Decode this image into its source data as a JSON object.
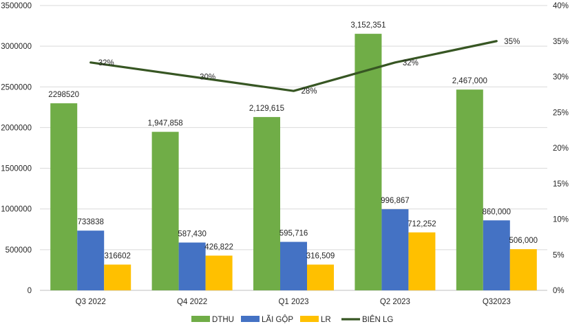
{
  "chart_data": {
    "type": "bar+line",
    "categories": [
      "Q3 2022",
      "Q4 2022",
      "Q1 2023",
      "Q2 2023",
      "Q32023"
    ],
    "series": [
      {
        "name": "DTHU",
        "type": "bar",
        "axis": "left",
        "color": "#70AD47",
        "values": [
          2298520,
          1947858,
          2129615,
          3152351,
          2467000
        ],
        "labels": [
          "2298520",
          "1,947,858",
          "2,129,615",
          "3,152,351",
          "2,467,000"
        ]
      },
      {
        "name": "LÃI GỘP",
        "type": "bar",
        "axis": "left",
        "color": "#4472C4",
        "values": [
          733838,
          587430,
          595716,
          996867,
          860000
        ],
        "labels": [
          "733838",
          "587,430",
          "595,716",
          "996,867",
          "860,000"
        ]
      },
      {
        "name": "LR",
        "type": "bar",
        "axis": "left",
        "color": "#FFC000",
        "values": [
          316602,
          426822,
          316509,
          712252,
          506000
        ],
        "labels": [
          "316602",
          "426,822",
          "316,509",
          "712,252",
          "506,000"
        ]
      },
      {
        "name": "BIÊN LG",
        "type": "line",
        "axis": "right",
        "color": "#375623",
        "values": [
          32,
          30,
          28,
          32,
          35
        ],
        "labels": [
          "32%",
          "30%",
          "28%",
          "32%",
          "35%"
        ]
      }
    ],
    "y_left": {
      "min": 0,
      "max": 3500000,
      "step": 500000,
      "ticks": [
        "0",
        "500000",
        "1000000",
        "1500000",
        "2000000",
        "2500000",
        "3000000",
        "3500000"
      ]
    },
    "y_right": {
      "min": 0,
      "max": 40,
      "step": 5,
      "ticks": [
        "0%",
        "5%",
        "10%",
        "15%",
        "20%",
        "25%",
        "30%",
        "35%",
        "40%"
      ]
    },
    "grid": true,
    "legend_position": "bottom"
  }
}
